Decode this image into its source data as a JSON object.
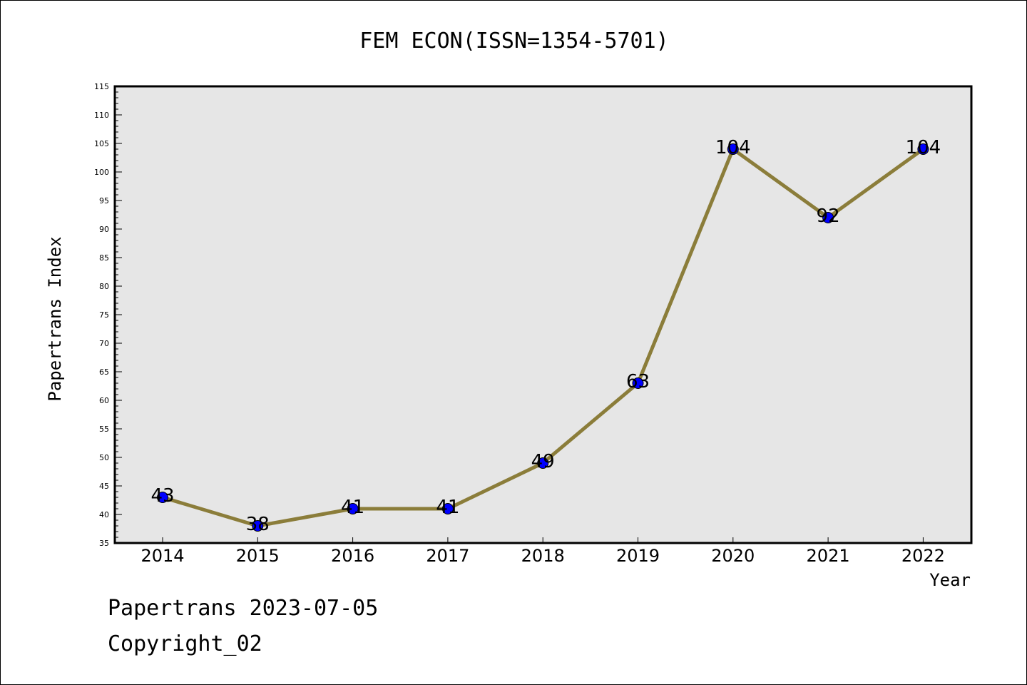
{
  "chart_data": {
    "type": "line",
    "title": "FEM ECON(ISSN=1354-5701)",
    "xlabel": "Year",
    "ylabel": "Papertrans Index",
    "x": [
      "2014",
      "2015",
      "2016",
      "2017",
      "2018",
      "2019",
      "2020",
      "2021",
      "2022"
    ],
    "series": [
      {
        "values": [
          43,
          38,
          41,
          41,
          49,
          63,
          104,
          92,
          104
        ]
      }
    ],
    "data_labels": [
      "43",
      "38",
      "41",
      "41",
      "49",
      "63",
      "104",
      "92",
      "104"
    ],
    "ylim": [
      35,
      115
    ],
    "y_ticks": [
      35,
      40,
      45,
      50,
      55,
      60,
      65,
      70,
      75,
      80,
      85,
      90,
      95,
      100,
      105,
      110,
      115
    ],
    "grid": false,
    "legend": "none",
    "colors": {
      "line": "#8B7D3A",
      "marker": "#0000FF",
      "plot_background": "#E6E6E6"
    }
  },
  "footer": {
    "line1": "Papertrans 2023-07-05",
    "line2": "Copyright_02"
  }
}
